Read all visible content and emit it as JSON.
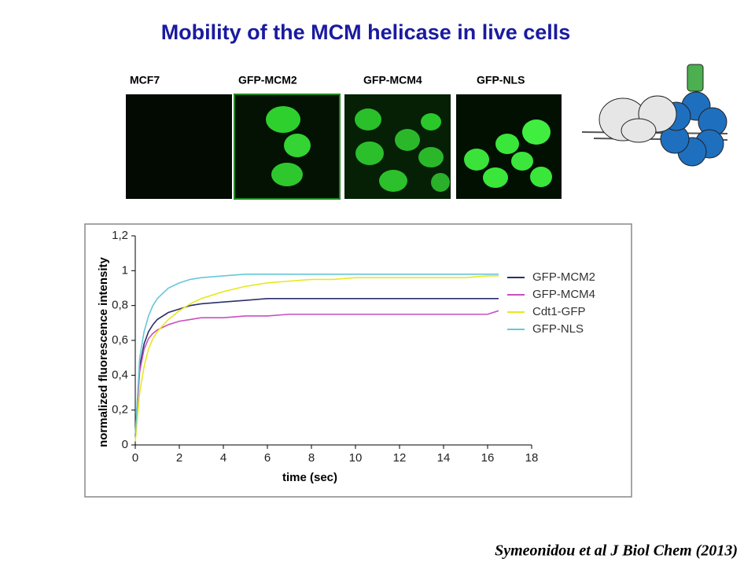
{
  "title": "Mobility of the MCM helicase in live cells",
  "panels": [
    "MCF7",
    "GFP-MCM2",
    "GFP-MCM4",
    "GFP-NLS"
  ],
  "citation": "Symeonidou et al J Biol Chem (2013)",
  "chart_data": {
    "type": "line",
    "xlabel": "time (sec)",
    "ylabel": "normalized fluorescence intensity",
    "x": [
      0,
      0.2,
      0.4,
      0.6,
      0.8,
      1,
      1.5,
      2,
      2.5,
      3,
      4,
      5,
      6,
      7,
      8,
      9,
      10,
      11,
      12,
      13,
      14,
      15,
      16,
      16.5
    ],
    "series": [
      {
        "name": "GFP-MCM2",
        "color": "#2b2f6b",
        "values": [
          0.05,
          0.45,
          0.58,
          0.65,
          0.69,
          0.72,
          0.76,
          0.78,
          0.8,
          0.81,
          0.82,
          0.83,
          0.84,
          0.84,
          0.84,
          0.84,
          0.84,
          0.84,
          0.84,
          0.84,
          0.84,
          0.84,
          0.84,
          0.84
        ]
      },
      {
        "name": "GFP-MCM4",
        "color": "#c94fc0",
        "values": [
          0.05,
          0.42,
          0.55,
          0.61,
          0.64,
          0.66,
          0.69,
          0.71,
          0.72,
          0.73,
          0.73,
          0.74,
          0.74,
          0.75,
          0.75,
          0.75,
          0.75,
          0.75,
          0.75,
          0.75,
          0.75,
          0.75,
          0.75,
          0.77
        ]
      },
      {
        "name": "Cdt1-GFP",
        "color": "#e8e820",
        "values": [
          0.02,
          0.3,
          0.45,
          0.55,
          0.61,
          0.65,
          0.72,
          0.77,
          0.81,
          0.84,
          0.88,
          0.91,
          0.93,
          0.94,
          0.95,
          0.95,
          0.96,
          0.96,
          0.96,
          0.96,
          0.96,
          0.96,
          0.97,
          0.97
        ]
      },
      {
        "name": "GFP-NLS",
        "color": "#66c8d8",
        "values": [
          0.05,
          0.5,
          0.65,
          0.74,
          0.8,
          0.84,
          0.9,
          0.93,
          0.95,
          0.96,
          0.97,
          0.98,
          0.98,
          0.98,
          0.98,
          0.98,
          0.98,
          0.98,
          0.98,
          0.98,
          0.98,
          0.98,
          0.98,
          0.98
        ]
      }
    ],
    "xlim": [
      0,
      18
    ],
    "xticks": [
      0,
      2,
      4,
      6,
      8,
      10,
      12,
      14,
      16,
      18
    ],
    "ylim": [
      0,
      1.2
    ],
    "yticks": [
      0,
      {
        "value": 0.2,
        "label": "0,2"
      },
      {
        "value": 0.4,
        "label": "0,4"
      },
      {
        "value": 0.6,
        "label": "0,6"
      },
      {
        "value": 0.8,
        "label": "0,8"
      },
      1,
      {
        "value": 1.2,
        "label": "1,2"
      }
    ],
    "legend": "right"
  }
}
